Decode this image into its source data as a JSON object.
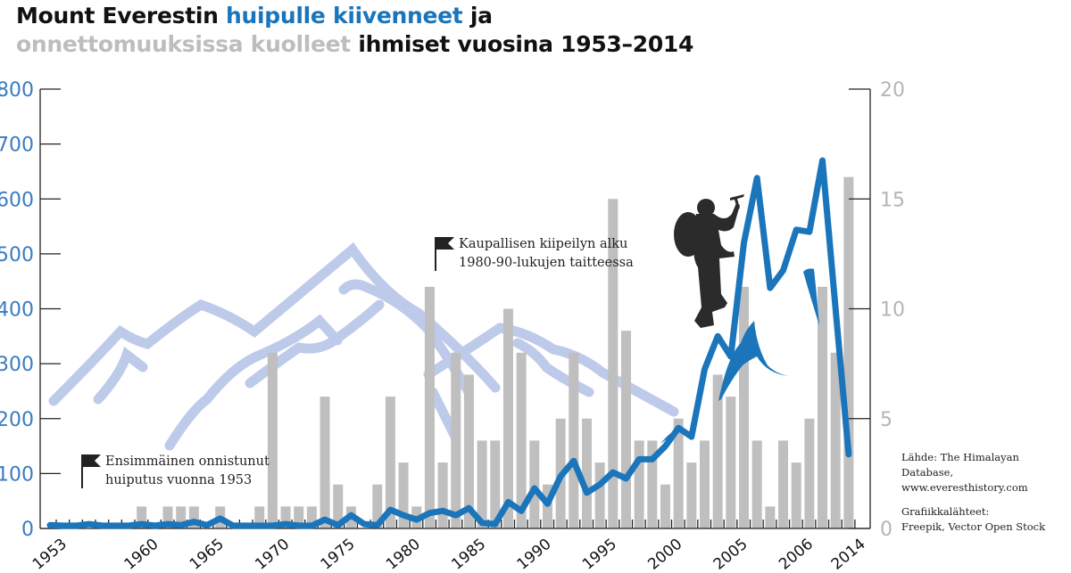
{
  "title": {
    "line1_part1": "Mount Everestin ",
    "line1_part2": "huipulle kiivenneet",
    "line1_part3": " ja",
    "line2_part1": "onnettomuuksissa kuolleet",
    "line2_part2": " ihmiset vuosina 1953–2014"
  },
  "annotations": {
    "first_summit_line1": "Ensimmäinen onnistunut",
    "first_summit_line2": "huiputus vuonna 1953",
    "commercial_line1": "Kaupallisen kiipeilyn alku",
    "commercial_line2": "1980-90-lukujen taitteessa"
  },
  "source": {
    "data_line1": "Lähde: The Himalayan Database,",
    "data_line2": "www.everesthistory.com",
    "graphics_line1": "Grafiikkalähteet:",
    "graphics_line2": "Freepik, Vector Open Stock"
  },
  "colors": {
    "summits": "#1a75bb",
    "deaths": "#bfbfbf",
    "mountains": "#a9b9e3",
    "left_axis_text": "#3a7cc0",
    "right_axis_text": "#b5b5b5"
  },
  "icons": {
    "flag": "flag-icon",
    "climber": "climber-silhouette"
  },
  "chart_data": {
    "type": "bar+line",
    "x_range": [
      1953,
      2014
    ],
    "x_tick_labels": [
      "1953",
      "1960",
      "1965",
      "1970",
      "1975",
      "1980",
      "1985",
      "1990",
      "1995",
      "2000",
      "2005",
      "2006",
      "2014"
    ],
    "left_axis": {
      "range": [
        0,
        800
      ],
      "ticks": [
        0,
        100,
        200,
        300,
        400,
        500,
        600,
        700,
        800
      ],
      "series": "summits"
    },
    "right_axis": {
      "range": [
        0,
        20
      ],
      "ticks": [
        0,
        5,
        10,
        15,
        20
      ],
      "series": "deaths"
    },
    "grid": false,
    "legend": "none (title color-coded)",
    "summits": {
      "type": "line",
      "years": [
        1953,
        1954,
        1955,
        1956,
        1957,
        1958,
        1959,
        1960,
        1961,
        1962,
        1963,
        1964,
        1965,
        1966,
        1967,
        1968,
        1969,
        1970,
        1971,
        1972,
        1973,
        1974,
        1975,
        1976,
        1977,
        1978,
        1979,
        1980,
        1981,
        1982,
        1983,
        1984,
        1985,
        1986,
        1987,
        1988,
        1989,
        1990,
        1991,
        1992,
        1993,
        1994,
        1995,
        1996,
        1997,
        1998,
        1999,
        2000,
        2001,
        2002,
        2003,
        2004,
        2005,
        2006,
        2007,
        2008,
        2009,
        2010,
        2011,
        2012,
        2013,
        2014
      ],
      "values": [
        6,
        5,
        5,
        8,
        5,
        5,
        5,
        8,
        5,
        8,
        6,
        12,
        6,
        18,
        5,
        5,
        5,
        5,
        8,
        5,
        5,
        16,
        6,
        24,
        8,
        6,
        34,
        24,
        16,
        28,
        32,
        24,
        37,
        10,
        8,
        48,
        32,
        73,
        45,
        95,
        123,
        65,
        80,
        102,
        91,
        126,
        126,
        150,
        183,
        167,
        290,
        350,
        313,
        520,
        638,
        438,
        470,
        544,
        540,
        670,
        400,
        135
      ]
    },
    "deaths": {
      "type": "bar",
      "years": [
        1960,
        1962,
        1963,
        1964,
        1966,
        1969,
        1970,
        1971,
        1972,
        1973,
        1974,
        1975,
        1976,
        1978,
        1979,
        1980,
        1981,
        1982,
        1983,
        1984,
        1985,
        1986,
        1987,
        1988,
        1989,
        1990,
        1991,
        1992,
        1993,
        1994,
        1995,
        1996,
        1997,
        1998,
        1999,
        2000,
        2001,
        2002,
        2003,
        2004,
        2005,
        2006,
        2007,
        2008,
        2009,
        2010,
        2011,
        2012,
        2013,
        2014
      ],
      "values": [
        1,
        1,
        1,
        1,
        1,
        1,
        8,
        1,
        1,
        1,
        6,
        2,
        1,
        2,
        6,
        3,
        1,
        11,
        3,
        8,
        7,
        4,
        4,
        10,
        8,
        4,
        2,
        5,
        8,
        5,
        3,
        15,
        9,
        4,
        4,
        2,
        5,
        3,
        4,
        7,
        6,
        11,
        4,
        1,
        4,
        3,
        5,
        11,
        8,
        16
      ]
    }
  }
}
